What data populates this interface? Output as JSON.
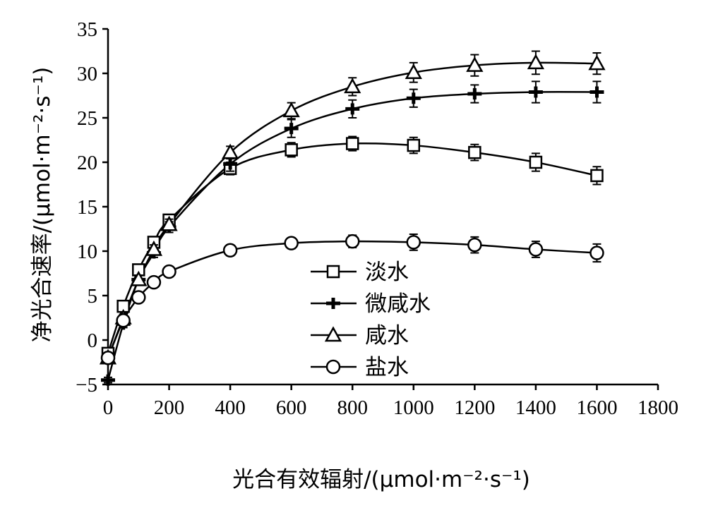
{
  "chart_data": {
    "type": "line",
    "title": "",
    "xlabel": "光合有效辐射/(μmol·m⁻²·s⁻¹)",
    "ylabel": "净光合速率/(μmol·m⁻²·s⁻¹)",
    "xlim": [
      0,
      1800
    ],
    "ylim": [
      -5,
      35
    ],
    "xticks": [
      0,
      200,
      400,
      600,
      800,
      1000,
      1200,
      1400,
      1600,
      1800
    ],
    "yticks": [
      -5,
      0,
      5,
      10,
      15,
      20,
      25,
      30,
      35
    ],
    "grid": false,
    "legend_position": "center",
    "x": [
      0,
      50,
      100,
      150,
      200,
      400,
      600,
      800,
      1000,
      1200,
      1400,
      1600
    ],
    "series": [
      {
        "name": "淡水",
        "marker": "square",
        "values": [
          -1.5,
          3.8,
          7.9,
          11.0,
          13.5,
          19.3,
          21.4,
          22.1,
          21.9,
          21.1,
          20.0,
          18.5
        ],
        "error": [
          0.4,
          0.4,
          0.5,
          0.5,
          0.5,
          0.7,
          0.8,
          0.8,
          0.9,
          0.9,
          1.0,
          1.0
        ]
      },
      {
        "name": "微咸水",
        "marker": "plus",
        "values": [
          -4.5,
          1.8,
          6.8,
          9.8,
          12.7,
          19.8,
          23.8,
          26.0,
          27.2,
          27.7,
          27.9,
          27.9
        ],
        "error": [
          0.3,
          0.4,
          0.5,
          0.5,
          0.6,
          0.8,
          1.0,
          1.0,
          1.0,
          1.0,
          1.2,
          1.2
        ]
      },
      {
        "name": "咸水",
        "marker": "triangle",
        "values": [
          -2.0,
          2.5,
          6.8,
          10.2,
          13.0,
          21.1,
          25.8,
          28.5,
          30.1,
          30.9,
          31.2,
          31.1
        ],
        "error": [
          0.3,
          0.4,
          0.5,
          0.5,
          0.6,
          0.7,
          0.9,
          1.0,
          1.1,
          1.2,
          1.3,
          1.2
        ]
      },
      {
        "name": "盐水",
        "marker": "circle",
        "values": [
          -2.0,
          2.2,
          4.8,
          6.5,
          7.7,
          10.1,
          10.9,
          11.1,
          11.0,
          10.7,
          10.2,
          9.8
        ],
        "error": [
          0.3,
          0.4,
          0.4,
          0.4,
          0.5,
          0.6,
          0.6,
          0.7,
          0.9,
          0.9,
          0.9,
          1.0
        ]
      }
    ]
  }
}
